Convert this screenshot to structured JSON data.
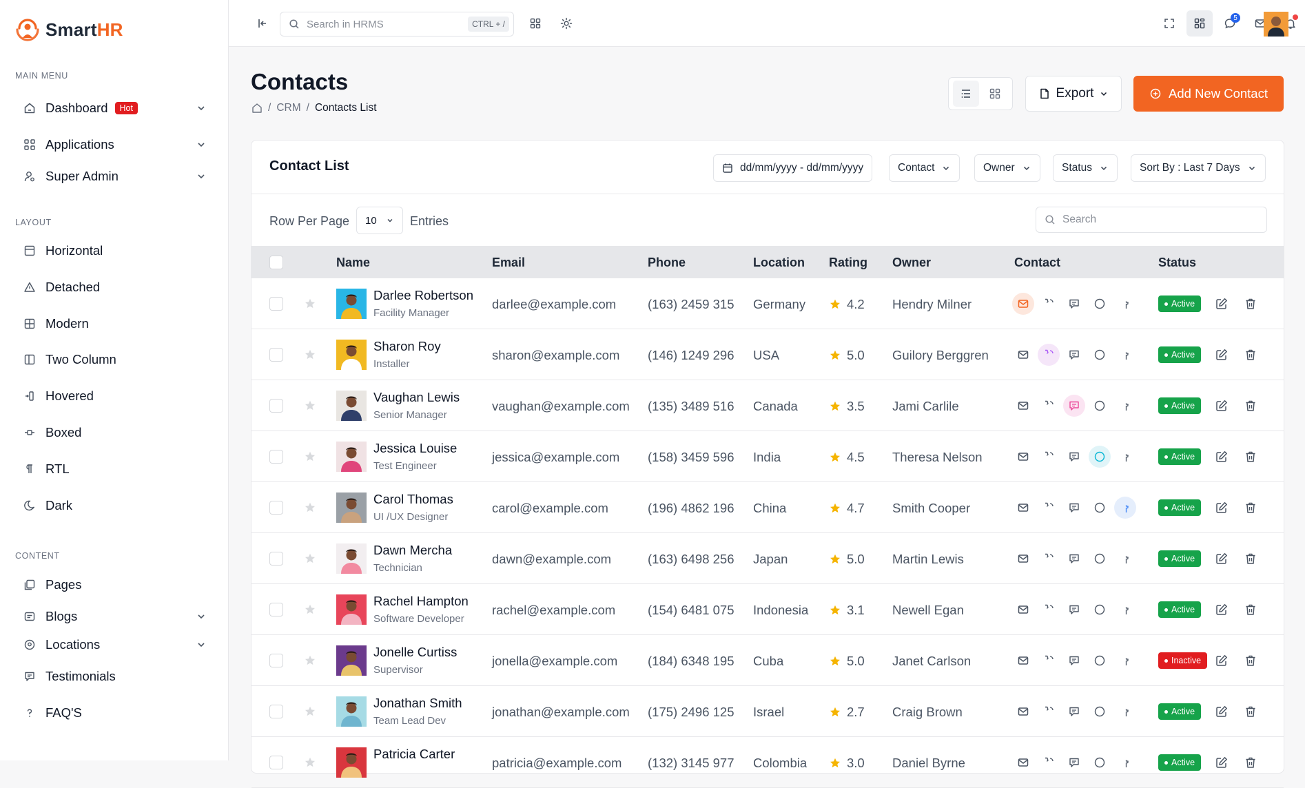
{
  "brand": {
    "name_part1": "Smart",
    "name_part2": "HR",
    "accent": "#f26522"
  },
  "sidebar": {
    "sections": [
      {
        "heading": "MAIN MENU"
      },
      {
        "heading": "LAYOUT"
      },
      {
        "heading": "CONTENT"
      }
    ],
    "items": [
      {
        "label": "Dashboard",
        "badge": "Hot",
        "icon": "home-icon",
        "expandable": true
      },
      {
        "label": "Applications",
        "icon": "apps-icon",
        "expandable": true
      },
      {
        "label": "Super Admin",
        "icon": "user-cog-icon",
        "expandable": true
      },
      {
        "label": "Horizontal",
        "icon": "layout-icon"
      },
      {
        "label": "Detached",
        "icon": "triangle-icon"
      },
      {
        "label": "Modern",
        "icon": "grid-icon"
      },
      {
        "label": "Two Column",
        "icon": "columns-icon"
      },
      {
        "label": "Hovered",
        "icon": "hover-icon"
      },
      {
        "label": "Boxed",
        "icon": "box-icon"
      },
      {
        "label": "RTL",
        "icon": "text-direction-icon"
      },
      {
        "label": "Dark",
        "icon": "moon-icon"
      },
      {
        "label": "Pages",
        "icon": "pages-icon"
      },
      {
        "label": "Blogs",
        "icon": "blog-icon",
        "expandable": true
      },
      {
        "label": "Locations",
        "icon": "location-icon",
        "expandable": true
      },
      {
        "label": "Testimonials",
        "icon": "chat-icon"
      },
      {
        "label": "FAQ'S",
        "icon": "question-icon"
      }
    ]
  },
  "topbar": {
    "search_placeholder": "Search in HRMS",
    "shortcut": "CTRL + /",
    "notification_count": "5"
  },
  "page": {
    "title": "Contacts",
    "breadcrumb": [
      "CRM",
      "Contacts List"
    ],
    "export_label": "Export",
    "add_label": "Add New Contact"
  },
  "card": {
    "title": "Contact List",
    "date_filter": "dd/mm/yyyy - dd/mm/yyyy",
    "filter_contact": "Contact",
    "filter_owner": "Owner",
    "filter_status": "Status",
    "sort_by": "Sort By : Last 7 Days",
    "rows_label": "Row Per Page",
    "rows_value": "10",
    "entries_label": "Entries",
    "search_placeholder": "Search"
  },
  "table": {
    "headers": {
      "name": "Name",
      "email": "Email",
      "phone": "Phone",
      "location": "Location",
      "rating": "Rating",
      "owner": "Owner",
      "contact": "Contact",
      "status": "Status"
    },
    "rows": [
      {
        "name": "Darlee Robertson",
        "role": "Facility Manager",
        "email": "darlee@example.com",
        "phone": "(163) 2459 315",
        "location": "Germany",
        "rating": "4.2",
        "owner": "Hendry Milner",
        "status": "Active",
        "highlight": "mail",
        "avatar_color": "#29b6e6",
        "shirt": "#f1b922"
      },
      {
        "name": "Sharon Roy",
        "role": "Installer",
        "email": "sharon@example.com",
        "phone": "(146) 1249 296",
        "location": "USA",
        "rating": "5.0",
        "owner": "Guilory Berggren",
        "status": "Active",
        "highlight": "phone",
        "avatar_color": "#f1b922",
        "shirt": "#ffffff"
      },
      {
        "name": "Vaughan Lewis",
        "role": "Senior  Manager",
        "email": "vaughan@example.com",
        "phone": "(135) 3489 516",
        "location": "Canada",
        "rating": "3.5",
        "owner": "Jami Carlile",
        "status": "Active",
        "highlight": "msg",
        "avatar_color": "#e9e6e2",
        "shirt": "#2f3f6a"
      },
      {
        "name": "Jessica Louise",
        "role": "Test Engineer",
        "email": "jessica@example.com",
        "phone": "(158) 3459 596",
        "location": "India",
        "rating": "4.5",
        "owner": "Theresa Nelson",
        "status": "Active",
        "highlight": "skype",
        "avatar_color": "#f0e2e4",
        "shirt": "#e0457b"
      },
      {
        "name": "Carol Thomas",
        "role": "UI /UX Designer",
        "email": "carol@example.com",
        "phone": "(196) 4862 196",
        "location": "China",
        "rating": "4.7",
        "owner": "Smith Cooper",
        "status": "Active",
        "highlight": "fb",
        "avatar_color": "#9aa0a6",
        "shirt": "#c9a27e"
      },
      {
        "name": "Dawn Mercha",
        "role": "Technician",
        "email": "dawn@example.com",
        "phone": "(163) 6498 256",
        "location": "Japan",
        "rating": "5.0",
        "owner": "Martin Lewis",
        "status": "Active",
        "highlight": "",
        "avatar_color": "#f2eef0",
        "shirt": "#f28aa0"
      },
      {
        "name": "Rachel Hampton",
        "role": "Software Developer",
        "email": "rachel@example.com",
        "phone": "(154) 6481 075",
        "location": "Indonesia",
        "rating": "3.1",
        "owner": "Newell Egan",
        "status": "Active",
        "highlight": "",
        "avatar_color": "#e8455a",
        "shirt": "#f3b4c2"
      },
      {
        "name": "Jonelle Curtiss",
        "role": "Supervisor",
        "email": "jonella@example.com",
        "phone": "(184) 6348 195",
        "location": "Cuba",
        "rating": "5.0",
        "owner": "Janet Carlson",
        "status": "Inactive",
        "highlight": "",
        "avatar_color": "#6b3a8c",
        "shirt": "#e8c36a"
      },
      {
        "name": "Jonathan Smith",
        "role": "Team Lead Dev",
        "email": "jonathan@example.com",
        "phone": "(175) 2496 125",
        "location": "Israel",
        "rating": "2.7",
        "owner": "Craig Brown",
        "status": "Active",
        "highlight": "",
        "avatar_color": "#a6dbe5",
        "shirt": "#6fb5cf"
      },
      {
        "name": "Patricia Carter",
        "role": "",
        "email": "patricia@example.com",
        "phone": "(132) 3145 977",
        "location": "Colombia",
        "rating": "3.0",
        "owner": "Daniel Byrne",
        "status": "Active",
        "highlight": "",
        "avatar_color": "#d9363e",
        "shirt": "#f1c27d"
      }
    ]
  }
}
